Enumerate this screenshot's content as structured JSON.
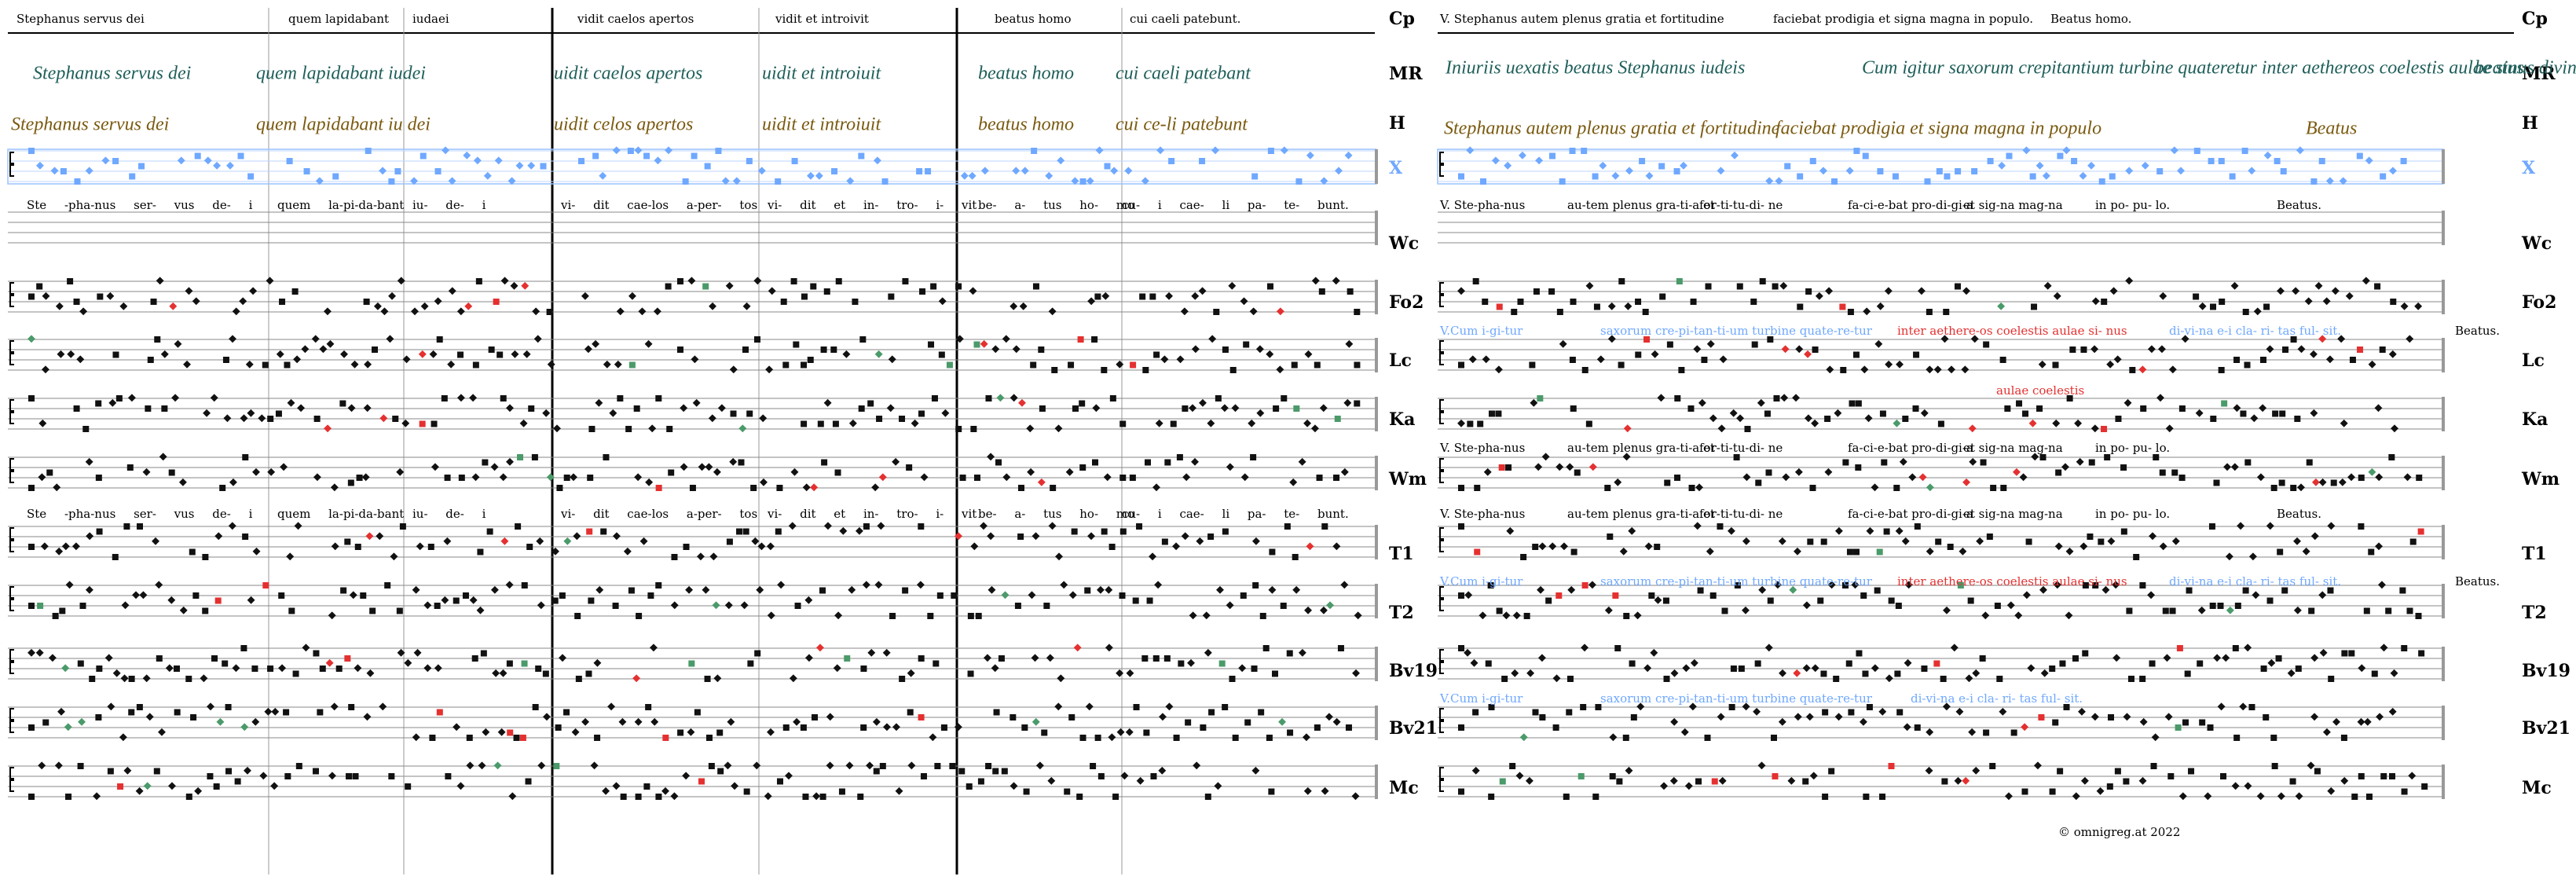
{
  "sigla": [
    "Cp",
    "MR",
    "H",
    "X",
    "Wc",
    "Fo2",
    "Lc",
    "Ka",
    "Wm",
    "T1",
    "T2",
    "Bv19",
    "Bv21",
    "Mc"
  ],
  "left": {
    "cp": [
      "Stephanus servus dei",
      "quem lapidabant",
      "iudaei",
      "vidit caelos apertos",
      "vidit et introivit",
      "beatus homo",
      "cui caeli patebunt."
    ],
    "mr": [
      "Stephanus servus dei",
      "quem lapidabant iudei",
      "uidit caelos apertos",
      "uidit et introiuit",
      "beatus homo",
      "cui caeli patebant"
    ],
    "h": [
      "Stephanus servus dei",
      "quem lapidabant iu dei",
      "uidit celos apertos",
      "uidit et introiuit",
      "beatus homo",
      "cui ce-li patebunt"
    ],
    "wc": [
      "Ste -pha-nus ser- vus de- i",
      "quem la-pi-da-bant",
      "iu- de- i",
      "vi- dit cae-los a-per- tos",
      "vi- dit et in- tro- i- vit",
      "be- a- tus ho- mo",
      "cu- i cae- li pa- te- bunt."
    ],
    "t1": [
      "Ste -pha-nus ser- vus de- i",
      "quem la-pi-da-bant",
      "iu- de- i",
      "vi- dit cae-los a-per- tos",
      "vi- dit et in- tro- i- vit",
      "be- a- tus ho- mo",
      "cu- i cae- li pa- te- bunt."
    ]
  },
  "right": {
    "cp": [
      "V. Stephanus autem plenus gratia et fortitudine",
      "faciebat prodigia et signa magna in populo.",
      "Beatus homo."
    ],
    "mr": [
      "Iniuriis uexatis beatus Stephanus iudeis",
      "Cum igitur saxorum crepitantium turbine quateretur inter aethereos coelestis aulae sinus divina ei claritas fulsit",
      "beatus"
    ],
    "h": [
      "Stephanus autem plenus gratia et fortitudine",
      "faciebat prodigia et signa magna in populo",
      "Beatus"
    ],
    "rows": [
      {
        "segments": [
          {
            "text": "V. Ste-pha-nus",
            "color": "#000000"
          },
          {
            "text": "au-tem plenus gra-ti-a et",
            "color": "#000000"
          },
          {
            "text": "for-ti-tu-di- ne",
            "color": "#000000"
          },
          {
            "text": "fa-ci-e-bat pro-di-gi-a",
            "color": "#000000"
          },
          {
            "text": "et sig-na mag-na",
            "color": "#000000"
          },
          {
            "text": "in po- pu- lo.",
            "color": "#000000"
          },
          {
            "text": "Beatus.",
            "color": "#000000"
          }
        ]
      },
      {
        "segments": [
          {
            "text": "V.Cum i-gi-tur",
            "color": "#6fa8ff"
          },
          {
            "text": "saxorum cre-pi-tan-ti-um turbine quate-re-tur",
            "color": "#6fa8ff"
          },
          {
            "text": "inter aethere-os coelestis aulae si- nus",
            "color": "#e53030"
          },
          {
            "text": "di-vi-na e-i cla- ri- tas ful- sit.",
            "color": "#6fa8ff"
          },
          {
            "text": "Beatus.",
            "color": "#000000"
          }
        ]
      },
      {
        "segments": [
          {
            "text": "aulae coelestis",
            "color": "#e53030"
          }
        ]
      },
      {
        "segments": [
          {
            "text": "V. Ste-pha-nus",
            "color": "#000000"
          },
          {
            "text": "au-tem plenus gra-ti-a et",
            "color": "#000000"
          },
          {
            "text": "for-ti-tu-di- ne",
            "color": "#000000"
          },
          {
            "text": "fa-ci-e-bat pro-di-gi-a",
            "color": "#000000"
          },
          {
            "text": "et sig-na mag-na",
            "color": "#000000"
          },
          {
            "text": "in po- pu- lo.",
            "color": "#000000"
          }
        ]
      },
      {
        "segments": [
          {
            "text": "V. Ste-pha-nus",
            "color": "#000000"
          },
          {
            "text": "au-tem plenus gra-ti-a et",
            "color": "#000000"
          },
          {
            "text": "for-ti-tu-di- ne",
            "color": "#000000"
          },
          {
            "text": "fa-ci-e-bat pro-di-gi-a",
            "color": "#000000"
          },
          {
            "text": "et sig-na mag-na",
            "color": "#000000"
          },
          {
            "text": "in po- pu- lo.",
            "color": "#000000"
          },
          {
            "text": "Beatus.",
            "color": "#000000"
          }
        ]
      },
      {
        "segments": [
          {
            "text": "V.Cum i-gi-tur",
            "color": "#6fa8ff"
          },
          {
            "text": "saxorum cre-pi-tan-ti-um turbine quate-re-tur",
            "color": "#6fa8ff"
          },
          {
            "text": "inter aethere-os coelestis aulae si- nus",
            "color": "#e53030"
          },
          {
            "text": "di-vi-na e-i cla- ri- tas ful- sit.",
            "color": "#6fa8ff"
          },
          {
            "text": "Beatus.",
            "color": "#000000"
          }
        ]
      },
      {
        "segments": [
          {
            "text": "V.Cum i-gi-tur",
            "color": "#6fa8ff"
          },
          {
            "text": "saxorum cre-pi-tan-ti-um turbine quate-re-tur",
            "color": "#6fa8ff"
          },
          {
            "text": "di-vi-na e-i cla- ri- tas ful- sit.",
            "color": "#6fa8ff"
          }
        ]
      }
    ]
  },
  "copyright": "© omnigreg.at 2022"
}
